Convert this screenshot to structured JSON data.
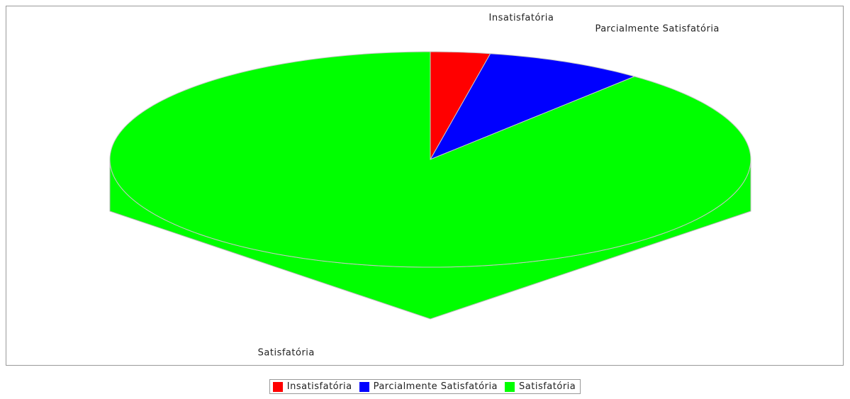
{
  "chart_data": {
    "type": "pie3d",
    "categories": [
      "Insatisfatória",
      "Parcialmente Satisfatória",
      "Satisfatória"
    ],
    "values": [
      3,
      8,
      89
    ],
    "colors": [
      "#ff0000",
      "#0000ff",
      "#00ff00"
    ],
    "legend": "bottom"
  }
}
